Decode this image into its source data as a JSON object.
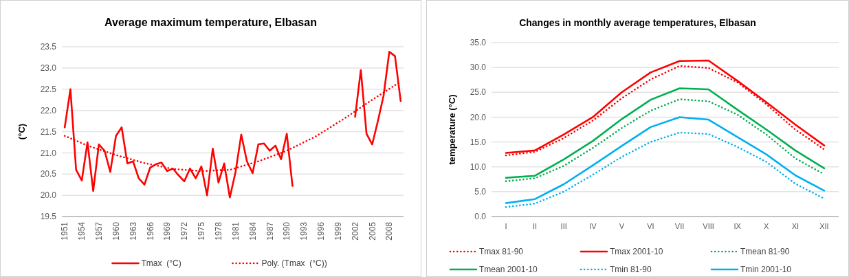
{
  "chart_data": [
    {
      "type": "line",
      "title": "Average maximum temperature, Elbasan",
      "ylabel": "(°C)",
      "x": [
        1951,
        1952,
        1953,
        1954,
        1955,
        1956,
        1957,
        1958,
        1959,
        1960,
        1961,
        1962,
        1963,
        1964,
        1965,
        1966,
        1967,
        1968,
        1969,
        1970,
        1971,
        1972,
        1973,
        1974,
        1975,
        1976,
        1977,
        1978,
        1979,
        1980,
        1981,
        1982,
        1983,
        1984,
        1985,
        1986,
        1987,
        1988,
        1989,
        1990,
        1991,
        1992,
        1993,
        1994,
        1995,
        1996,
        1997,
        1998,
        1999,
        2000,
        2001,
        2002,
        2003,
        2004,
        2005,
        2006,
        2007,
        2008,
        2009,
        2010
      ],
      "xlim": [
        1950.5,
        2010.5
      ],
      "xticks": [
        1951,
        1954,
        1957,
        1960,
        1963,
        1966,
        1969,
        1972,
        1975,
        1978,
        1981,
        1984,
        1987,
        1990,
        1993,
        1996,
        1999,
        2002,
        2005,
        2008
      ],
      "ylim": [
        19.5,
        23.5
      ],
      "yticks": [
        19.5,
        {
          "value": 20,
          "label": "20.0"
        },
        20.5,
        {
          "value": 21,
          "label": "21.0"
        },
        21.5,
        {
          "value": 22,
          "label": "22.0"
        },
        22.5,
        {
          "value": 23,
          "label": "23.0"
        },
        23.5
      ],
      "grid": "y",
      "legend": "bottom",
      "series": [
        {
          "name": "Tmax  (°C)",
          "color": "#ff0000",
          "line_style": "solid",
          "values": [
            21.6,
            22.5,
            20.6,
            20.35,
            21.25,
            20.1,
            21.2,
            21.05,
            20.55,
            21.4,
            21.6,
            20.75,
            20.8,
            20.4,
            20.25,
            20.65,
            20.73,
            20.77,
            20.57,
            20.63,
            20.47,
            20.33,
            20.63,
            20.4,
            20.68,
            20.0,
            21.1,
            20.3,
            20.75,
            19.95,
            20.55,
            21.43,
            20.8,
            20.52,
            21.2,
            21.22,
            21.05,
            21.17,
            20.85,
            21.45,
            20.22,
            null,
            null,
            null,
            null,
            null,
            null,
            null,
            null,
            null,
            null,
            21.85,
            22.95,
            21.45,
            21.2,
            21.75,
            22.35,
            23.38,
            23.28,
            22.22
          ]
        },
        {
          "name": "Poly. (Tmax  (°C))",
          "color": "#ff0000",
          "line_style": "dotted",
          "x": [
            1951,
            1955,
            1960,
            1965,
            1970,
            1975,
            1980,
            1985,
            1990,
            1995,
            2000,
            2005,
            2010
          ],
          "values": [
            21.4,
            21.17,
            20.95,
            20.76,
            20.62,
            20.57,
            20.6,
            20.8,
            21.05,
            21.38,
            21.8,
            22.25,
            22.68
          ]
        }
      ]
    },
    {
      "type": "line",
      "title": "Changes in monthly average temperatures, Elbasan",
      "ylabel": "temperature (°C)",
      "categories": [
        "I",
        "II",
        "III",
        "IV",
        "V",
        "VI",
        "VII",
        "VIII",
        "IX",
        "X",
        "XI",
        "XII"
      ],
      "ylim": [
        0,
        35
      ],
      "yticks": [
        {
          "value": 0,
          "label": "0.0"
        },
        {
          "value": 5,
          "label": "5.0"
        },
        {
          "value": 10,
          "label": "10.0"
        },
        {
          "value": 15,
          "label": "15.0"
        },
        {
          "value": 20,
          "label": "20.0"
        },
        {
          "value": 25,
          "label": "25.0"
        },
        {
          "value": 30,
          "label": "30.0"
        },
        {
          "value": 35,
          "label": "35.0"
        }
      ],
      "grid": "y",
      "legend": "bottom",
      "series": [
        {
          "name": "Tmax 81-90",
          "color": "#ff0000",
          "line_style": "dotted",
          "values": [
            12.3,
            13,
            15.8,
            19.3,
            23.8,
            27.6,
            30.3,
            29.9,
            27,
            22.6,
            17.5,
            13.5
          ]
        },
        {
          "name": "Tmax 2001-10",
          "color": "#ff0000",
          "line_style": "solid",
          "values": [
            12.8,
            13.3,
            16.5,
            20,
            25,
            29,
            31.3,
            31.4,
            27.3,
            23,
            18.5,
            14.3
          ]
        },
        {
          "name": "Tmean 81-90",
          "color": "#00b050",
          "line_style": "dotted",
          "values": [
            7.1,
            7.7,
            10.2,
            13.8,
            17.8,
            21.3,
            23.6,
            23.2,
            20.5,
            16.5,
            11.7,
            8.5
          ]
        },
        {
          "name": "Tmean 2001-10",
          "color": "#00b050",
          "line_style": "solid",
          "values": [
            7.8,
            8.2,
            11.5,
            15.2,
            19.6,
            23.5,
            25.8,
            25.6,
            21.5,
            17.5,
            13.3,
            9.7
          ]
        },
        {
          "name": "Tmin 81-90",
          "color": "#00b0f0",
          "line_style": "dotted",
          "values": [
            1.9,
            2.6,
            5,
            8.4,
            12,
            15,
            16.9,
            16.6,
            14,
            11,
            6.6,
            3.6
          ]
        },
        {
          "name": "Tmin 2001-10",
          "color": "#00b0f0",
          "line_style": "solid",
          "values": [
            2.7,
            3.5,
            6.5,
            10.3,
            14.2,
            18,
            20,
            19.5,
            16,
            12.5,
            8.3,
            5.2
          ]
        }
      ]
    }
  ]
}
